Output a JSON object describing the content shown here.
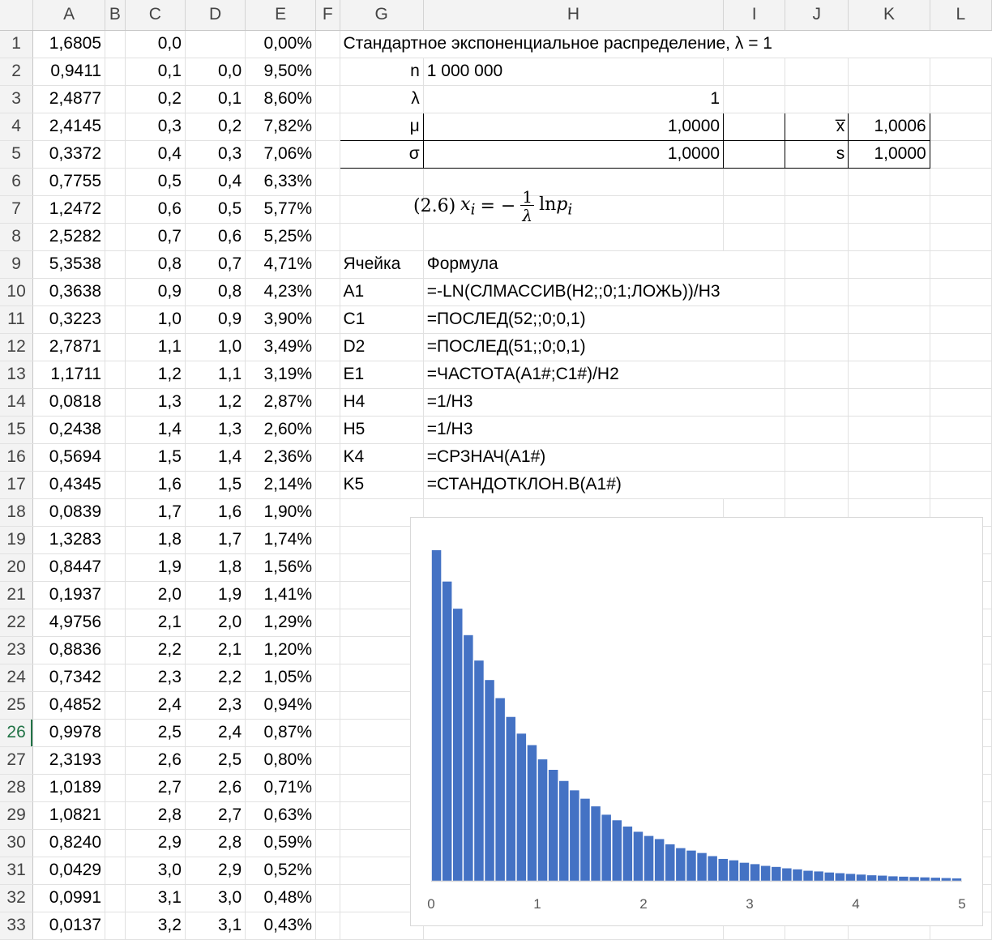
{
  "columns": [
    "",
    "A",
    "B",
    "C",
    "D",
    "E",
    "F",
    "G",
    "H",
    "I",
    "J",
    "K",
    "L"
  ],
  "rows": [
    {
      "n": "1",
      "A": "1,6805",
      "C": "0,0",
      "D": "",
      "E": "0,00%"
    },
    {
      "n": "2",
      "A": "0,9411",
      "C": "0,1",
      "D": "0,0",
      "E": "9,50%"
    },
    {
      "n": "3",
      "A": "2,4877",
      "C": "0,2",
      "D": "0,1",
      "E": "8,60%"
    },
    {
      "n": "4",
      "A": "2,4145",
      "C": "0,3",
      "D": "0,2",
      "E": "7,82%"
    },
    {
      "n": "5",
      "A": "0,3372",
      "C": "0,4",
      "D": "0,3",
      "E": "7,06%"
    },
    {
      "n": "6",
      "A": "0,7755",
      "C": "0,5",
      "D": "0,4",
      "E": "6,33%"
    },
    {
      "n": "7",
      "A": "1,2472",
      "C": "0,6",
      "D": "0,5",
      "E": "5,77%"
    },
    {
      "n": "8",
      "A": "2,5282",
      "C": "0,7",
      "D": "0,6",
      "E": "5,25%"
    },
    {
      "n": "9",
      "A": "5,3538",
      "C": "0,8",
      "D": "0,7",
      "E": "4,71%"
    },
    {
      "n": "10",
      "A": "0,3638",
      "C": "0,9",
      "D": "0,8",
      "E": "4,23%"
    },
    {
      "n": "11",
      "A": "0,3223",
      "C": "1,0",
      "D": "0,9",
      "E": "3,90%"
    },
    {
      "n": "12",
      "A": "2,7871",
      "C": "1,1",
      "D": "1,0",
      "E": "3,49%"
    },
    {
      "n": "13",
      "A": "1,1711",
      "C": "1,2",
      "D": "1,1",
      "E": "3,19%"
    },
    {
      "n": "14",
      "A": "0,0818",
      "C": "1,3",
      "D": "1,2",
      "E": "2,87%"
    },
    {
      "n": "15",
      "A": "0,2438",
      "C": "1,4",
      "D": "1,3",
      "E": "2,60%"
    },
    {
      "n": "16",
      "A": "0,5694",
      "C": "1,5",
      "D": "1,4",
      "E": "2,36%"
    },
    {
      "n": "17",
      "A": "0,4345",
      "C": "1,6",
      "D": "1,5",
      "E": "2,14%"
    },
    {
      "n": "18",
      "A": "0,0839",
      "C": "1,7",
      "D": "1,6",
      "E": "1,90%"
    },
    {
      "n": "19",
      "A": "1,3283",
      "C": "1,8",
      "D": "1,7",
      "E": "1,74%"
    },
    {
      "n": "20",
      "A": "0,8447",
      "C": "1,9",
      "D": "1,8",
      "E": "1,56%"
    },
    {
      "n": "21",
      "A": "0,1937",
      "C": "2,0",
      "D": "1,9",
      "E": "1,41%"
    },
    {
      "n": "22",
      "A": "4,9756",
      "C": "2,1",
      "D": "2,0",
      "E": "1,29%"
    },
    {
      "n": "23",
      "A": "0,8836",
      "C": "2,2",
      "D": "2,1",
      "E": "1,20%"
    },
    {
      "n": "24",
      "A": "0,7342",
      "C": "2,3",
      "D": "2,2",
      "E": "1,05%"
    },
    {
      "n": "25",
      "A": "0,4852",
      "C": "2,4",
      "D": "2,3",
      "E": "0,94%"
    },
    {
      "n": "26",
      "A": "0,9978",
      "C": "2,5",
      "D": "2,4",
      "E": "0,87%"
    },
    {
      "n": "27",
      "A": "2,3193",
      "C": "2,6",
      "D": "2,5",
      "E": "0,80%"
    },
    {
      "n": "28",
      "A": "1,0189",
      "C": "2,7",
      "D": "2,6",
      "E": "0,71%"
    },
    {
      "n": "29",
      "A": "1,0821",
      "C": "2,8",
      "D": "2,7",
      "E": "0,63%"
    },
    {
      "n": "30",
      "A": "0,8240",
      "C": "2,9",
      "D": "2,8",
      "E": "0,59%"
    },
    {
      "n": "31",
      "A": "0,0429",
      "C": "3,0",
      "D": "2,9",
      "E": "0,52%"
    },
    {
      "n": "32",
      "A": "0,0991",
      "C": "3,1",
      "D": "3,0",
      "E": "0,48%"
    },
    {
      "n": "33",
      "A": "0,0137",
      "C": "3,2",
      "D": "3,1",
      "E": "0,43%"
    }
  ],
  "active_row": "26",
  "info": {
    "title": "Стандартное экспоненциальное распределение, λ = 1",
    "n_label": "n",
    "n_value": "1 000 000",
    "lambda_label": "λ",
    "lambda_value": "1",
    "mu_label": "μ",
    "mu_value": "1,0000",
    "xbar_label": "x̅",
    "xbar_value": "1,0006",
    "sigma_label": "σ",
    "sigma_value": "1,0000",
    "s_label": "s",
    "s_value": "1,0000"
  },
  "equation": {
    "prefix": "(2.6)",
    "lhs": "x",
    "lhs_sub": "i",
    "eq": "= −",
    "num": "1",
    "den": "λ",
    "rhs": "ln",
    "rhs_var": "p",
    "rhs_sub": "i"
  },
  "formulas": {
    "header_cell": "Ячейка",
    "header_formula": "Формула",
    "items": [
      {
        "cell": "A1",
        "formula": "=-LN(СЛМАССИВ(H2;;0;1;ЛОЖЬ))/H3"
      },
      {
        "cell": "C1",
        "formula": "=ПОСЛЕД(52;;0;0,1)"
      },
      {
        "cell": "D2",
        "formula": "=ПОСЛЕД(51;;0;0,1)"
      },
      {
        "cell": "E1",
        "formula": "=ЧАСТОТА(A1#;C1#)/H2"
      },
      {
        "cell": "H4",
        "formula": "=1/H3"
      },
      {
        "cell": "H5",
        "formula": "=1/H3"
      },
      {
        "cell": "K4",
        "formula": "=СРЗНАЧ(A1#)"
      },
      {
        "cell": "K5",
        "formula": "=СТАНДОТКЛОН.В(A1#)"
      }
    ]
  },
  "colors": {
    "bar": "#4472c4",
    "axis": "#d9d9d9",
    "active": "#217346"
  },
  "chart_data": {
    "type": "bar",
    "title": "",
    "xlabel": "",
    "ylabel": "",
    "xlim": [
      0,
      5
    ],
    "x_ticks": [
      "0",
      "1",
      "2",
      "3",
      "4",
      "5"
    ],
    "bin_width": 0.1,
    "values": [
      9.5,
      8.6,
      7.82,
      7.06,
      6.33,
      5.77,
      5.25,
      4.71,
      4.23,
      3.9,
      3.49,
      3.19,
      2.87,
      2.6,
      2.36,
      2.14,
      1.9,
      1.74,
      1.56,
      1.41,
      1.29,
      1.2,
      1.05,
      0.94,
      0.87,
      0.8,
      0.71,
      0.63,
      0.59,
      0.52,
      0.48,
      0.43,
      0.4,
      0.36,
      0.33,
      0.29,
      0.27,
      0.24,
      0.22,
      0.2,
      0.18,
      0.16,
      0.15,
      0.13,
      0.12,
      0.11,
      0.1,
      0.09,
      0.08,
      0.07
    ],
    "grid": false,
    "legend": "none"
  }
}
